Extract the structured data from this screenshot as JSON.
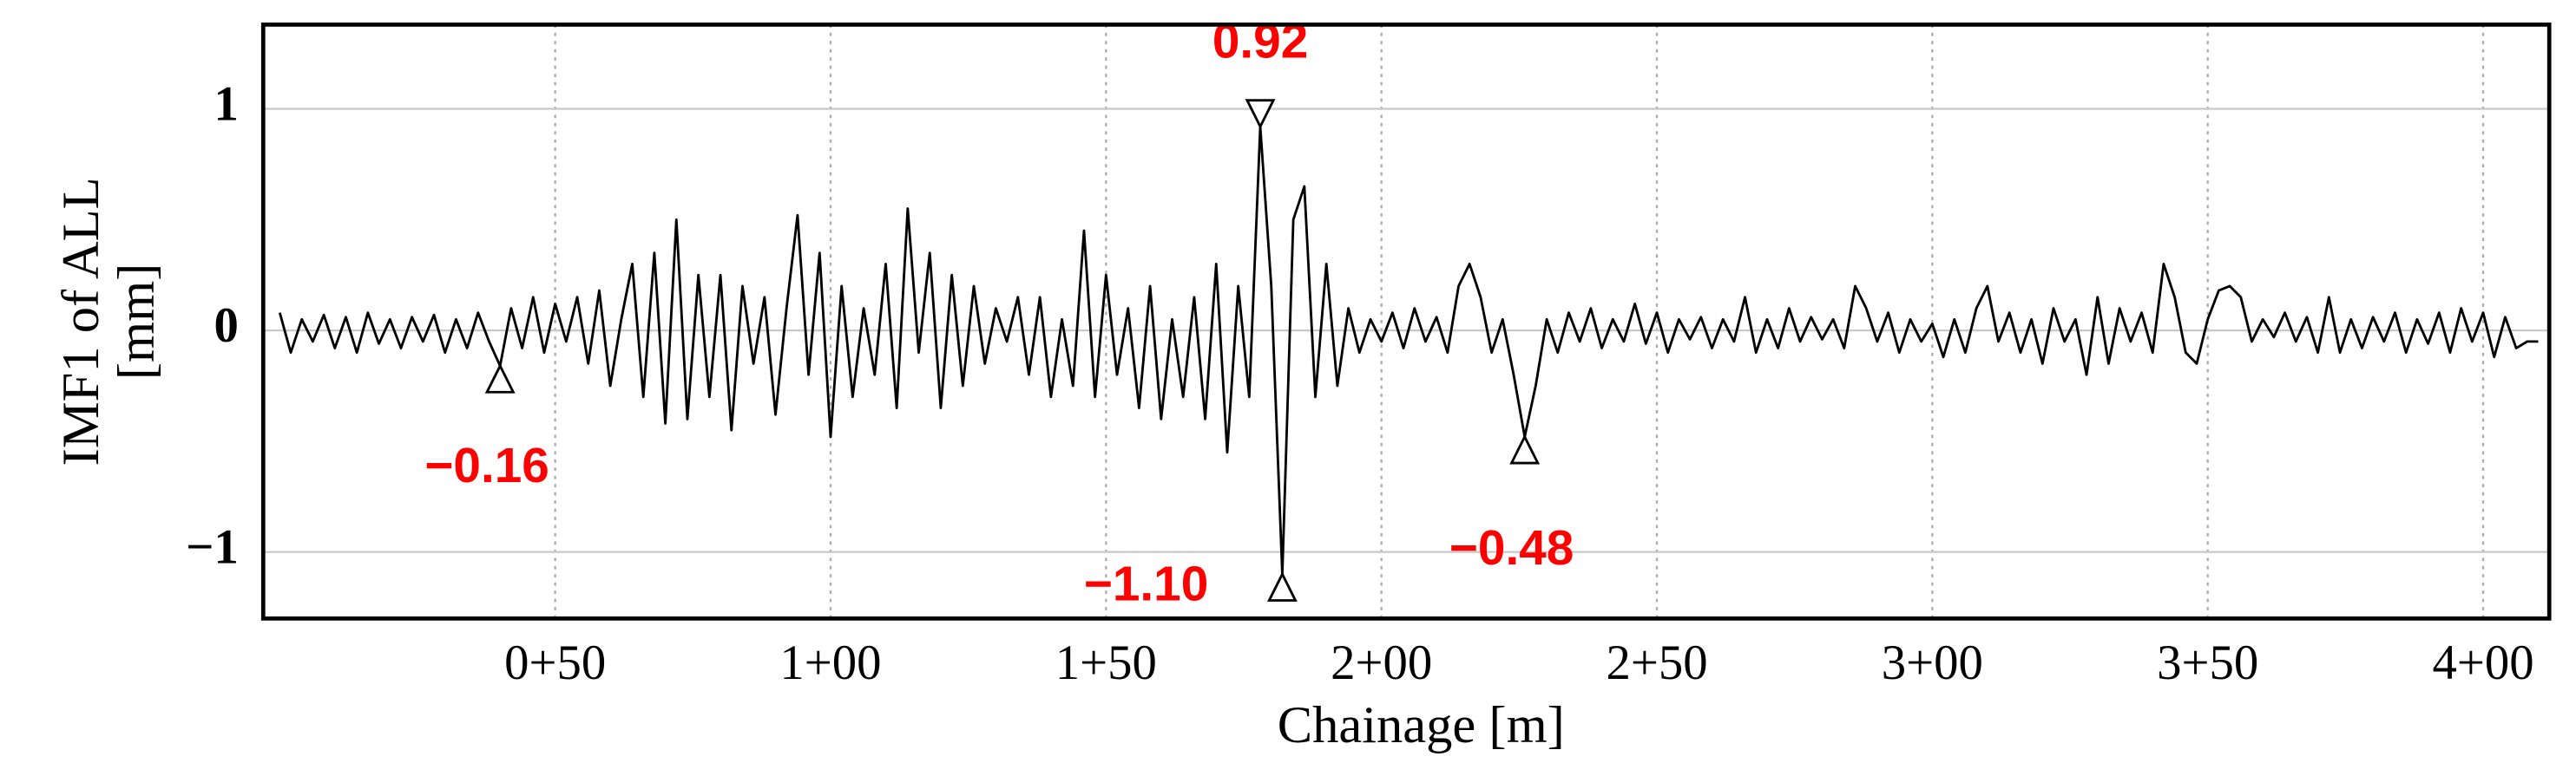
{
  "chart_data": {
    "type": "line",
    "x_label": "Chainage [m]",
    "y_label": [
      "IMF1 of ALL",
      "[mm]"
    ],
    "xlim": [
      -3,
      412
    ],
    "ylim": [
      -1.3,
      1.38
    ],
    "xticks": [
      {
        "value": 50,
        "label": "0+50"
      },
      {
        "value": 100,
        "label": "1+00"
      },
      {
        "value": 150,
        "label": "1+50"
      },
      {
        "value": 200,
        "label": "2+00"
      },
      {
        "value": 250,
        "label": "2+50"
      },
      {
        "value": 300,
        "label": "3+00"
      },
      {
        "value": 350,
        "label": "3+50"
      },
      {
        "value": 400,
        "label": "4+00"
      }
    ],
    "yticks": [
      {
        "value": -1,
        "label": "−1"
      },
      0,
      1
    ],
    "grid": true,
    "x": [
      0,
      2,
      4,
      6,
      8,
      10,
      12,
      14,
      16,
      18,
      20,
      22,
      24,
      26,
      28,
      30,
      32,
      34,
      36,
      38,
      40,
      42,
      44,
      46,
      48,
      50,
      52,
      54,
      56,
      58,
      60,
      62,
      64,
      66,
      68,
      70,
      72,
      74,
      76,
      78,
      80,
      82,
      84,
      86,
      88,
      90,
      92,
      94,
      96,
      98,
      100,
      102,
      104,
      106,
      108,
      110,
      112,
      114,
      116,
      118,
      120,
      122,
      124,
      126,
      128,
      130,
      132,
      134,
      136,
      138,
      140,
      142,
      144,
      146,
      148,
      150,
      152,
      154,
      156,
      158,
      160,
      162,
      164,
      166,
      168,
      170,
      172,
      174,
      176,
      178,
      180,
      182,
      184,
      186,
      188,
      190,
      192,
      194,
      196,
      198,
      200,
      202,
      204,
      206,
      208,
      210,
      212,
      214,
      216,
      218,
      220,
      222,
      224,
      226,
      228,
      230,
      232,
      234,
      236,
      238,
      240,
      242,
      244,
      246,
      248,
      250,
      252,
      254,
      256,
      258,
      260,
      262,
      264,
      266,
      268,
      270,
      272,
      274,
      276,
      278,
      280,
      282,
      284,
      286,
      288,
      290,
      292,
      294,
      296,
      298,
      300,
      302,
      304,
      306,
      308,
      310,
      312,
      314,
      316,
      318,
      320,
      322,
      324,
      326,
      328,
      330,
      332,
      334,
      336,
      338,
      340,
      342,
      344,
      346,
      348,
      350,
      352,
      354,
      356,
      358,
      360,
      362,
      364,
      366,
      368,
      370,
      372,
      374,
      376,
      378,
      380,
      382,
      384,
      386,
      388,
      390,
      392,
      394,
      396,
      398,
      400,
      402,
      404,
      406,
      408,
      410
    ],
    "series": [
      {
        "color": "#000000",
        "values": [
          0.08,
          -0.1,
          0.05,
          -0.05,
          0.07,
          -0.08,
          0.06,
          -0.1,
          0.08,
          -0.06,
          0.05,
          -0.08,
          0.06,
          -0.05,
          0.07,
          -0.1,
          0.05,
          -0.08,
          0.08,
          -0.05,
          -0.16,
          0.1,
          -0.08,
          0.15,
          -0.1,
          0.12,
          -0.05,
          0.15,
          -0.15,
          0.18,
          -0.25,
          0.05,
          0.3,
          -0.3,
          0.35,
          -0.42,
          0.5,
          -0.4,
          0.25,
          -0.3,
          0.25,
          -0.45,
          0.2,
          -0.15,
          0.15,
          -0.38,
          0.1,
          0.52,
          -0.2,
          0.35,
          -0.48,
          0.2,
          -0.3,
          0.1,
          -0.2,
          0.3,
          -0.35,
          0.55,
          -0.1,
          0.35,
          -0.35,
          0.25,
          -0.25,
          0.2,
          -0.15,
          0.1,
          -0.05,
          0.15,
          -0.2,
          0.15,
          -0.3,
          0.05,
          -0.25,
          0.45,
          -0.3,
          0.25,
          -0.2,
          0.1,
          -0.35,
          0.2,
          -0.4,
          0.05,
          -0.3,
          0.15,
          -0.4,
          0.3,
          -0.55,
          0.2,
          -0.3,
          0.92,
          0.2,
          -1.1,
          0.5,
          0.65,
          -0.3,
          0.3,
          -0.25,
          0.1,
          -0.1,
          0.05,
          -0.05,
          0.08,
          -0.08,
          0.1,
          -0.05,
          0.06,
          -0.1,
          0.2,
          0.3,
          0.15,
          -0.1,
          0.05,
          -0.2,
          -0.48,
          -0.25,
          0.05,
          -0.1,
          0.08,
          -0.05,
          0.1,
          -0.08,
          0.05,
          -0.05,
          0.12,
          -0.06,
          0.08,
          -0.1,
          0.05,
          -0.04,
          0.06,
          -0.08,
          0.05,
          -0.05,
          0.15,
          -0.1,
          0.05,
          -0.08,
          0.1,
          -0.05,
          0.06,
          -0.04,
          0.05,
          -0.08,
          0.2,
          0.1,
          -0.05,
          0.08,
          -0.1,
          0.05,
          -0.05,
          0.03,
          -0.12,
          0.05,
          -0.1,
          0.1,
          0.2,
          -0.05,
          0.08,
          -0.1,
          0.05,
          -0.15,
          0.1,
          -0.05,
          0.05,
          -0.2,
          0.15,
          -0.15,
          0.1,
          -0.05,
          0.08,
          -0.1,
          0.3,
          0.15,
          -0.1,
          -0.15,
          0.05,
          0.18,
          0.2,
          0.15,
          -0.05,
          0.05,
          -0.03,
          0.08,
          -0.05,
          0.06,
          -0.1,
          0.15,
          -0.1,
          0.05,
          -0.08,
          0.06,
          -0.05,
          0.08,
          -0.1,
          0.05,
          -0.06,
          0.08,
          -0.1,
          0.1,
          -0.05,
          0.08,
          -0.12,
          0.06,
          -0.08,
          -0.05,
          -0.05
        ]
      }
    ],
    "annotations": [
      {
        "x": 40,
        "y": -0.16,
        "label": "−0.16"
      },
      {
        "x": 178,
        "y": 0.92,
        "label": "0.92"
      },
      {
        "x": 182,
        "y": -1.1,
        "label": "−1.10"
      },
      {
        "x": 226,
        "y": -0.48,
        "label": "−0.48"
      }
    ]
  }
}
